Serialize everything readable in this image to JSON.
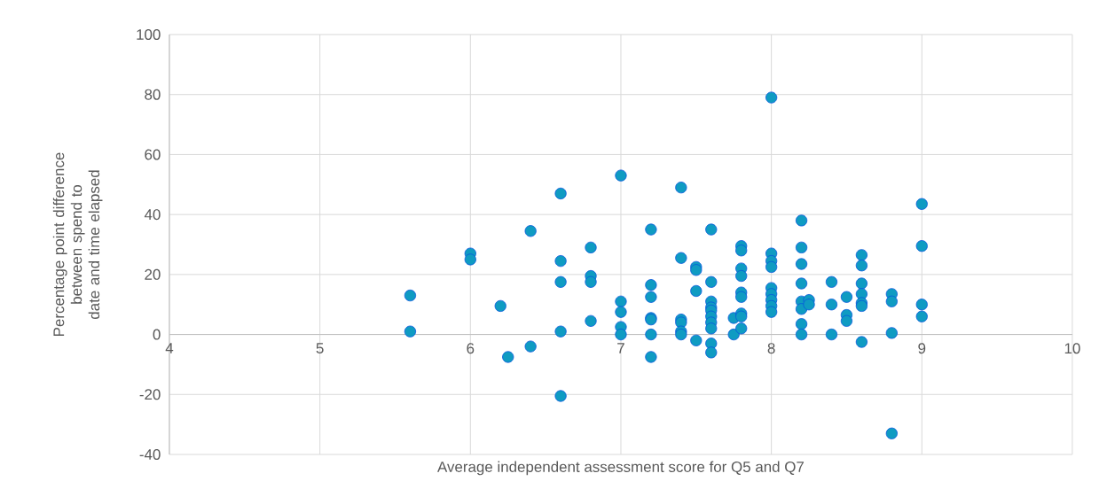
{
  "chart_data": {
    "type": "scatter",
    "xlabel": "Average independent assessment score for Q5 and Q7",
    "ylabel": "Percentage point difference between spend to date and time elapsed",
    "xlim": [
      4,
      10
    ],
    "ylim": [
      -40,
      100
    ],
    "xticks": [
      4,
      5,
      6,
      7,
      8,
      9,
      10
    ],
    "yticks": [
      -40,
      -20,
      0,
      20,
      40,
      60,
      80,
      100
    ],
    "grid": true,
    "series": [
      {
        "color": "#0f9bc2",
        "x": [
          5.6,
          5.6,
          6,
          6,
          6.2,
          6.25,
          6.4,
          6.4,
          6.6,
          6.6,
          6.6,
          6.6,
          6.6,
          6.8,
          6.8,
          6.8,
          6.8,
          7,
          7,
          7,
          7,
          7,
          7.2,
          7.2,
          7.2,
          7.2,
          7.2,
          7.2,
          7.2,
          7.4,
          7.4,
          7.4,
          7.4,
          7.4,
          7.4,
          7.5,
          7.5,
          7.5,
          7.5,
          7.6,
          7.6,
          7.6,
          7.6,
          7.6,
          7.6,
          7.6,
          7.6,
          7.6,
          7.6,
          7.75,
          7.75,
          7.8,
          7.8,
          7.8,
          7.8,
          7.8,
          7.8,
          7.8,
          7.8,
          7.8,
          8,
          8,
          8,
          8,
          8,
          8,
          8,
          8,
          8,
          8.2,
          8.2,
          8.2,
          8.2,
          8.2,
          8.2,
          8.2,
          8.2,
          8.25,
          8.25,
          8.4,
          8.4,
          8.4,
          8.5,
          8.5,
          8.5,
          8.6,
          8.6,
          8.6,
          8.6,
          8.6,
          8.6,
          8.6,
          8.8,
          8.8,
          8.8,
          8.8,
          9,
          9,
          9,
          9
        ],
        "values": [
          13,
          1,
          27,
          25,
          9.5,
          -7.5,
          34.5,
          -4,
          47,
          24.5,
          17.5,
          1,
          -20.5,
          29,
          19.5,
          17.5,
          4.5,
          53,
          11,
          7.5,
          2.5,
          0,
          35,
          16.5,
          12.5,
          5.5,
          5,
          0,
          -7.5,
          49,
          25.5,
          5,
          4,
          1,
          0,
          22.5,
          21.5,
          14.5,
          -2,
          35,
          17.5,
          11,
          9,
          8,
          6,
          4,
          2,
          -3,
          -6,
          5.5,
          0,
          29.5,
          28,
          22,
          19.5,
          14,
          12.5,
          7,
          6,
          2,
          79,
          27,
          24.5,
          22.5,
          15.5,
          13.5,
          11.5,
          9.5,
          7.5,
          38,
          29,
          23.5,
          17,
          11,
          8.5,
          3.5,
          0,
          11.5,
          10,
          17.5,
          10,
          0,
          12.5,
          6.5,
          4.5,
          26.5,
          23,
          17,
          13.5,
          10.5,
          9.5,
          -2.5,
          13.5,
          11,
          0.5,
          -33,
          43.5,
          29.5,
          10,
          6
        ]
      }
    ]
  }
}
